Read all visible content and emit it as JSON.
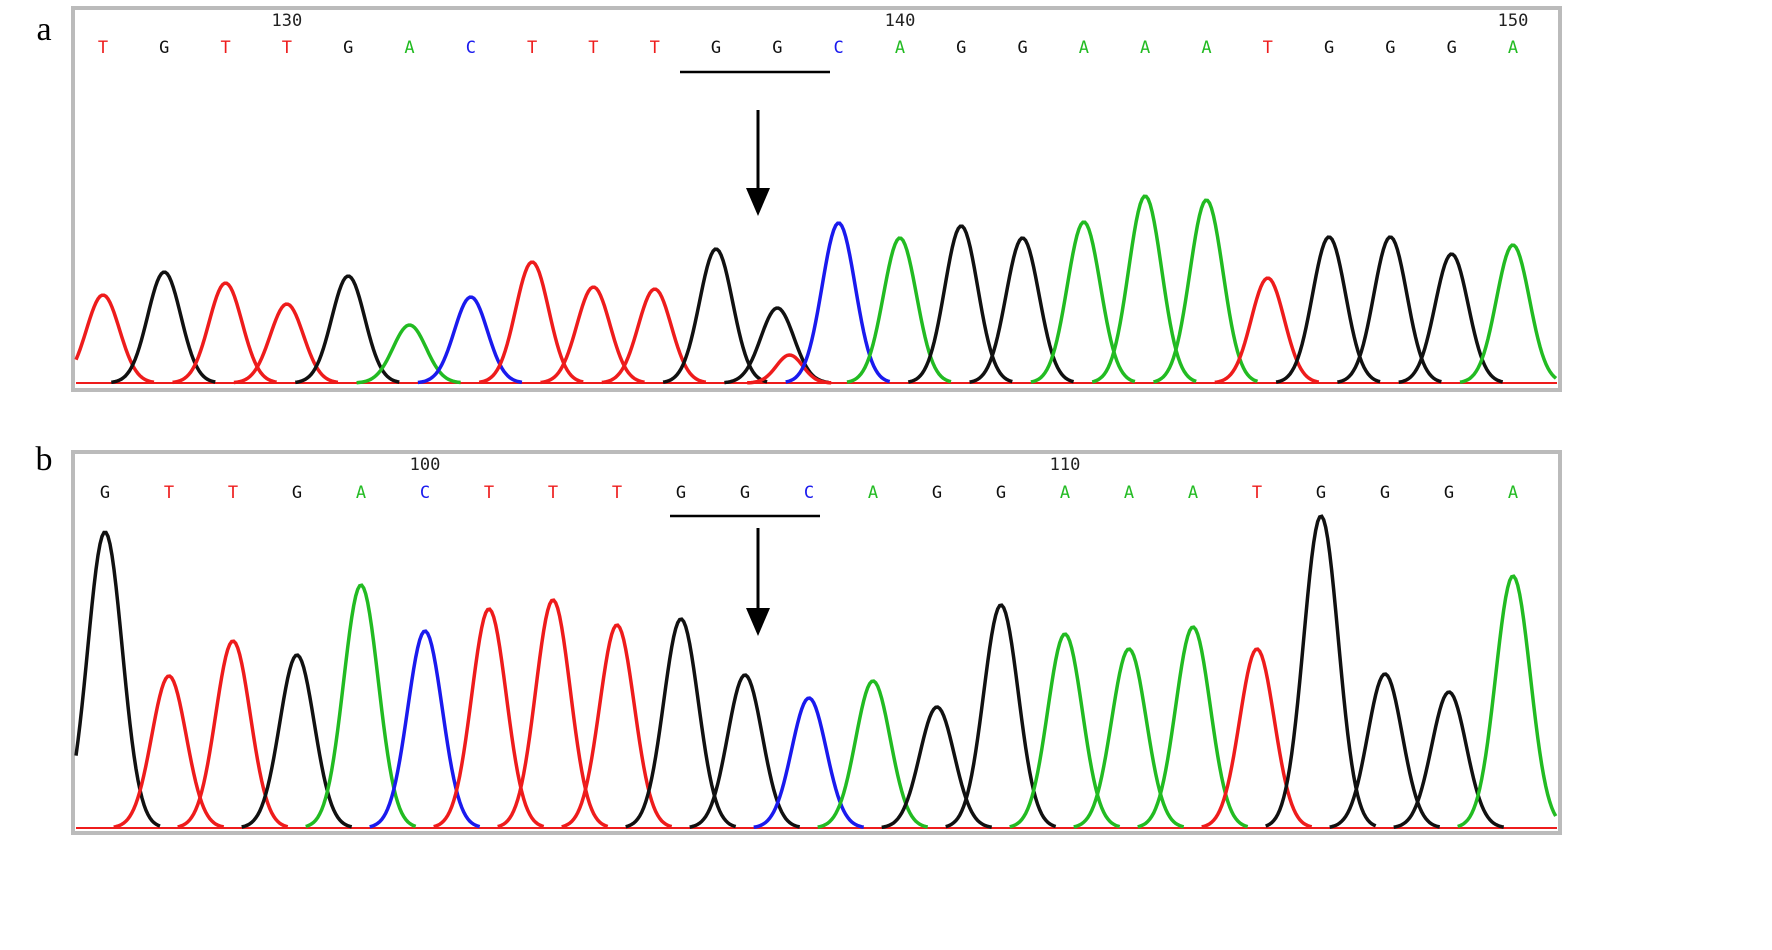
{
  "panels": [
    {
      "label": "a",
      "bases": [
        "T",
        "G",
        "T",
        "T",
        "G",
        "A",
        "C",
        "T",
        "T",
        "T",
        "G",
        "G",
        "C",
        "A",
        "G",
        "G",
        "A",
        "A",
        "A",
        "T",
        "G",
        "G",
        "G",
        "A"
      ],
      "positions": [
        null,
        null,
        null,
        130,
        null,
        null,
        null,
        null,
        null,
        null,
        null,
        null,
        null,
        140,
        null,
        null,
        null,
        null,
        null,
        null,
        null,
        null,
        null,
        150
      ],
      "peak_heights": [
        88,
        111,
        100,
        79,
        107,
        58,
        86,
        121,
        96,
        94,
        134,
        75,
        160,
        145,
        157,
        145,
        161,
        187,
        183,
        105,
        146,
        146,
        129,
        138
      ],
      "secondary_bases": [
        null,
        null,
        null,
        null,
        null,
        null,
        null,
        null,
        null,
        null,
        null,
        "T",
        null,
        null,
        null,
        null,
        null,
        null,
        null,
        null,
        null,
        null,
        null,
        null
      ],
      "secondary_heights": [
        null,
        null,
        null,
        null,
        null,
        null,
        null,
        null,
        null,
        null,
        null,
        28,
        null,
        null,
        null,
        null,
        null,
        null,
        null,
        null,
        null,
        null,
        null,
        null
      ]
    },
    {
      "label": "b",
      "bases": [
        "G",
        "T",
        "T",
        "G",
        "A",
        "C",
        "T",
        "T",
        "T",
        "G",
        "G",
        "C",
        "A",
        "G",
        "G",
        "A",
        "A",
        "A",
        "T",
        "G",
        "G",
        "G",
        "A"
      ],
      "positions": [
        null,
        null,
        null,
        null,
        null,
        100,
        null,
        null,
        null,
        null,
        null,
        null,
        null,
        null,
        null,
        110,
        null,
        null,
        null,
        null,
        null,
        null,
        null
      ],
      "peak_heights": [
        296,
        152,
        187,
        173,
        243,
        197,
        219,
        228,
        203,
        209,
        153,
        130,
        147,
        121,
        223,
        194,
        179,
        201,
        179,
        312,
        154,
        136,
        252
      ],
      "secondary_bases": [
        null,
        null,
        null,
        null,
        null,
        null,
        null,
        null,
        null,
        null,
        null,
        null,
        null,
        null,
        null,
        null,
        null,
        null,
        null,
        null,
        null,
        null,
        null
      ],
      "secondary_heights": [
        null,
        null,
        null,
        null,
        null,
        null,
        null,
        null,
        null,
        null,
        null,
        null,
        null,
        null,
        null,
        null,
        null,
        null,
        null,
        null,
        null,
        null,
        null
      ]
    }
  ],
  "base_colors": {
    "A": "#22bb22",
    "C": "#1a1aee",
    "G": "#111111",
    "T": "#ee1c1c"
  }
}
